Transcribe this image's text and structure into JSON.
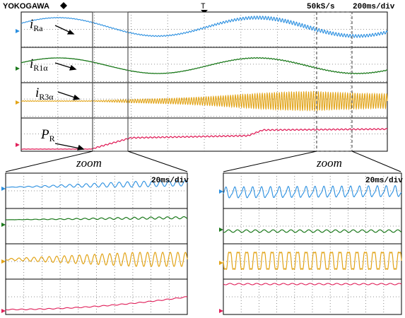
{
  "header": {
    "brand": "YOKOGAWA",
    "brand_mark": "diamond-icon",
    "trigger_marker": "T",
    "sample_rate": "50kS/s",
    "timebase": "200ms/div"
  },
  "colors": {
    "i_Ra": "#2a8fe0",
    "i_R1a": "#1d7a1d",
    "i_R3a": "#e2a418",
    "P_R": "#e0205a",
    "grid": "#6f6f6f",
    "zoom_box": "#555555"
  },
  "labels": {
    "i_Ra_main": "i",
    "i_Ra_sub": "Ra",
    "i_R1a_main": "i",
    "i_R1a_sub": "R1α",
    "i_R3a_main": "i",
    "i_R3a_sub": "R3α",
    "P_R_main": "P",
    "P_R_sub": "R"
  },
  "zoom_left": {
    "label": "zoom",
    "timebase": "20ms/div"
  },
  "zoom_right": {
    "label": "zoom",
    "timebase": "20ms/div"
  },
  "chart_data": [
    {
      "type": "line",
      "title": "",
      "x_unit": "ms",
      "xlim": [
        0,
        2000
      ],
      "grid": true,
      "series": [
        {
          "name": "i_Ra",
          "description": "sinusoid ~0.9 Hz envelope carrying harmonic ripple that grows after 1400 ms",
          "base_freq_hz": 0.92,
          "base_amp_div": 0.55,
          "ripple_amp_div": [
            0.0,
            0.25
          ]
        },
        {
          "name": "i_R1α",
          "base_freq_hz": 0.92,
          "base_amp_div": 0.45,
          "ripple_amp_div": [
            0.0,
            0.05
          ]
        },
        {
          "name": "i_R3α",
          "base_amp_div": [
            0.05,
            0.95
          ],
          "ripple_onset_ms": 500
        },
        {
          "name": "P_R",
          "values_div": [
            [
              0,
              -0.55
            ],
            [
              400,
              -0.55
            ],
            [
              520,
              0.1
            ],
            [
              1200,
              0.3
            ],
            [
              1400,
              0.75
            ],
            [
              2000,
              0.75
            ]
          ]
        }
      ],
      "zoom_windows_ms": [
        [
          420,
          620
        ],
        [
          1580,
          1780
        ]
      ]
    },
    {
      "type": "line",
      "title": "",
      "timebase": "20ms/div",
      "window_ms": [
        420,
        620
      ],
      "x_unit": "ms"
    },
    {
      "type": "line",
      "title": "",
      "timebase": "20ms/div",
      "window_ms": [
        1580,
        1780
      ],
      "x_unit": "ms"
    }
  ]
}
